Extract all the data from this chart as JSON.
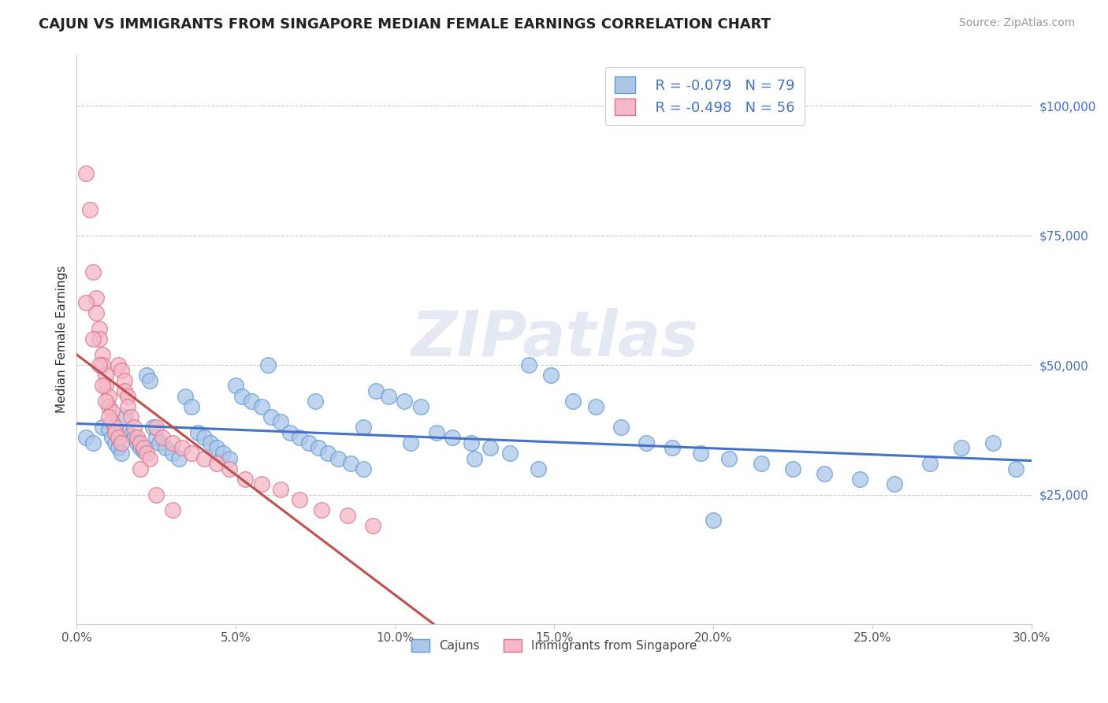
{
  "title": "CAJUN VS IMMIGRANTS FROM SINGAPORE MEDIAN FEMALE EARNINGS CORRELATION CHART",
  "source": "Source: ZipAtlas.com",
  "ylabel": "Median Female Earnings",
  "xlim": [
    0.0,
    0.3
  ],
  "ylim": [
    0,
    110000
  ],
  "xtick_labels": [
    "0.0%",
    "5.0%",
    "10.0%",
    "15.0%",
    "20.0%",
    "25.0%",
    "30.0%"
  ],
  "xtick_vals": [
    0.0,
    0.05,
    0.1,
    0.15,
    0.2,
    0.25,
    0.3
  ],
  "ytick_vals": [
    25000,
    50000,
    75000,
    100000
  ],
  "ytick_labels": [
    "$25,000",
    "$50,000",
    "$75,000",
    "$100,000"
  ],
  "cajun_color": "#adc6e8",
  "cajun_edge_color": "#5b9bd5",
  "singapore_color": "#f4b8c8",
  "singapore_edge_color": "#d9748a",
  "line_cajun_color": "#4472c4",
  "line_singapore_color": "#c0504d",
  "legend_text_color": "#4472c4",
  "watermark": "ZIPatlas",
  "R_cajun": -0.079,
  "N_cajun": 79,
  "R_singapore": -0.498,
  "N_singapore": 56,
  "cajun_x": [
    0.003,
    0.005,
    0.008,
    0.01,
    0.011,
    0.012,
    0.013,
    0.014,
    0.015,
    0.016,
    0.017,
    0.018,
    0.019,
    0.02,
    0.021,
    0.022,
    0.023,
    0.024,
    0.025,
    0.026,
    0.028,
    0.03,
    0.032,
    0.034,
    0.036,
    0.038,
    0.04,
    0.042,
    0.044,
    0.046,
    0.048,
    0.05,
    0.052,
    0.055,
    0.058,
    0.061,
    0.064,
    0.067,
    0.07,
    0.073,
    0.076,
    0.079,
    0.082,
    0.086,
    0.09,
    0.094,
    0.098,
    0.103,
    0.108,
    0.113,
    0.118,
    0.124,
    0.13,
    0.136,
    0.142,
    0.149,
    0.156,
    0.163,
    0.171,
    0.179,
    0.187,
    0.196,
    0.205,
    0.215,
    0.225,
    0.235,
    0.246,
    0.257,
    0.268,
    0.278,
    0.288,
    0.295,
    0.06,
    0.075,
    0.09,
    0.105,
    0.125,
    0.145,
    0.2
  ],
  "cajun_y": [
    36000,
    35000,
    38000,
    37500,
    36000,
    35000,
    34000,
    33000,
    40000,
    37000,
    36500,
    36000,
    35000,
    34000,
    33500,
    48000,
    47000,
    38000,
    36000,
    35000,
    34000,
    33000,
    32000,
    44000,
    42000,
    37000,
    36000,
    35000,
    34000,
    33000,
    32000,
    46000,
    44000,
    43000,
    42000,
    40000,
    39000,
    37000,
    36000,
    35000,
    34000,
    33000,
    32000,
    31000,
    30000,
    45000,
    44000,
    43000,
    42000,
    37000,
    36000,
    35000,
    34000,
    33000,
    50000,
    48000,
    43000,
    42000,
    38000,
    35000,
    34000,
    33000,
    32000,
    31000,
    30000,
    29000,
    28000,
    27000,
    31000,
    34000,
    35000,
    30000,
    50000,
    43000,
    38000,
    35000,
    32000,
    30000,
    20000
  ],
  "singapore_x": [
    0.003,
    0.004,
    0.005,
    0.006,
    0.006,
    0.007,
    0.007,
    0.008,
    0.008,
    0.009,
    0.009,
    0.01,
    0.01,
    0.011,
    0.011,
    0.012,
    0.012,
    0.013,
    0.013,
    0.014,
    0.015,
    0.015,
    0.016,
    0.016,
    0.017,
    0.018,
    0.019,
    0.02,
    0.021,
    0.022,
    0.023,
    0.025,
    0.027,
    0.03,
    0.033,
    0.036,
    0.04,
    0.044,
    0.048,
    0.053,
    0.058,
    0.064,
    0.07,
    0.077,
    0.085,
    0.093,
    0.003,
    0.005,
    0.007,
    0.008,
    0.009,
    0.01,
    0.014,
    0.02,
    0.025,
    0.03
  ],
  "singapore_y": [
    87000,
    80000,
    68000,
    63000,
    60000,
    57000,
    55000,
    52000,
    50000,
    48000,
    46000,
    44000,
    42000,
    41000,
    39000,
    38000,
    37000,
    36000,
    50000,
    49000,
    47000,
    45000,
    44000,
    42000,
    40000,
    38000,
    36000,
    35000,
    34000,
    33000,
    32000,
    38000,
    36000,
    35000,
    34000,
    33000,
    32000,
    31000,
    30000,
    28000,
    27000,
    26000,
    24000,
    22000,
    21000,
    19000,
    62000,
    55000,
    50000,
    46000,
    43000,
    40000,
    35000,
    30000,
    25000,
    22000
  ]
}
